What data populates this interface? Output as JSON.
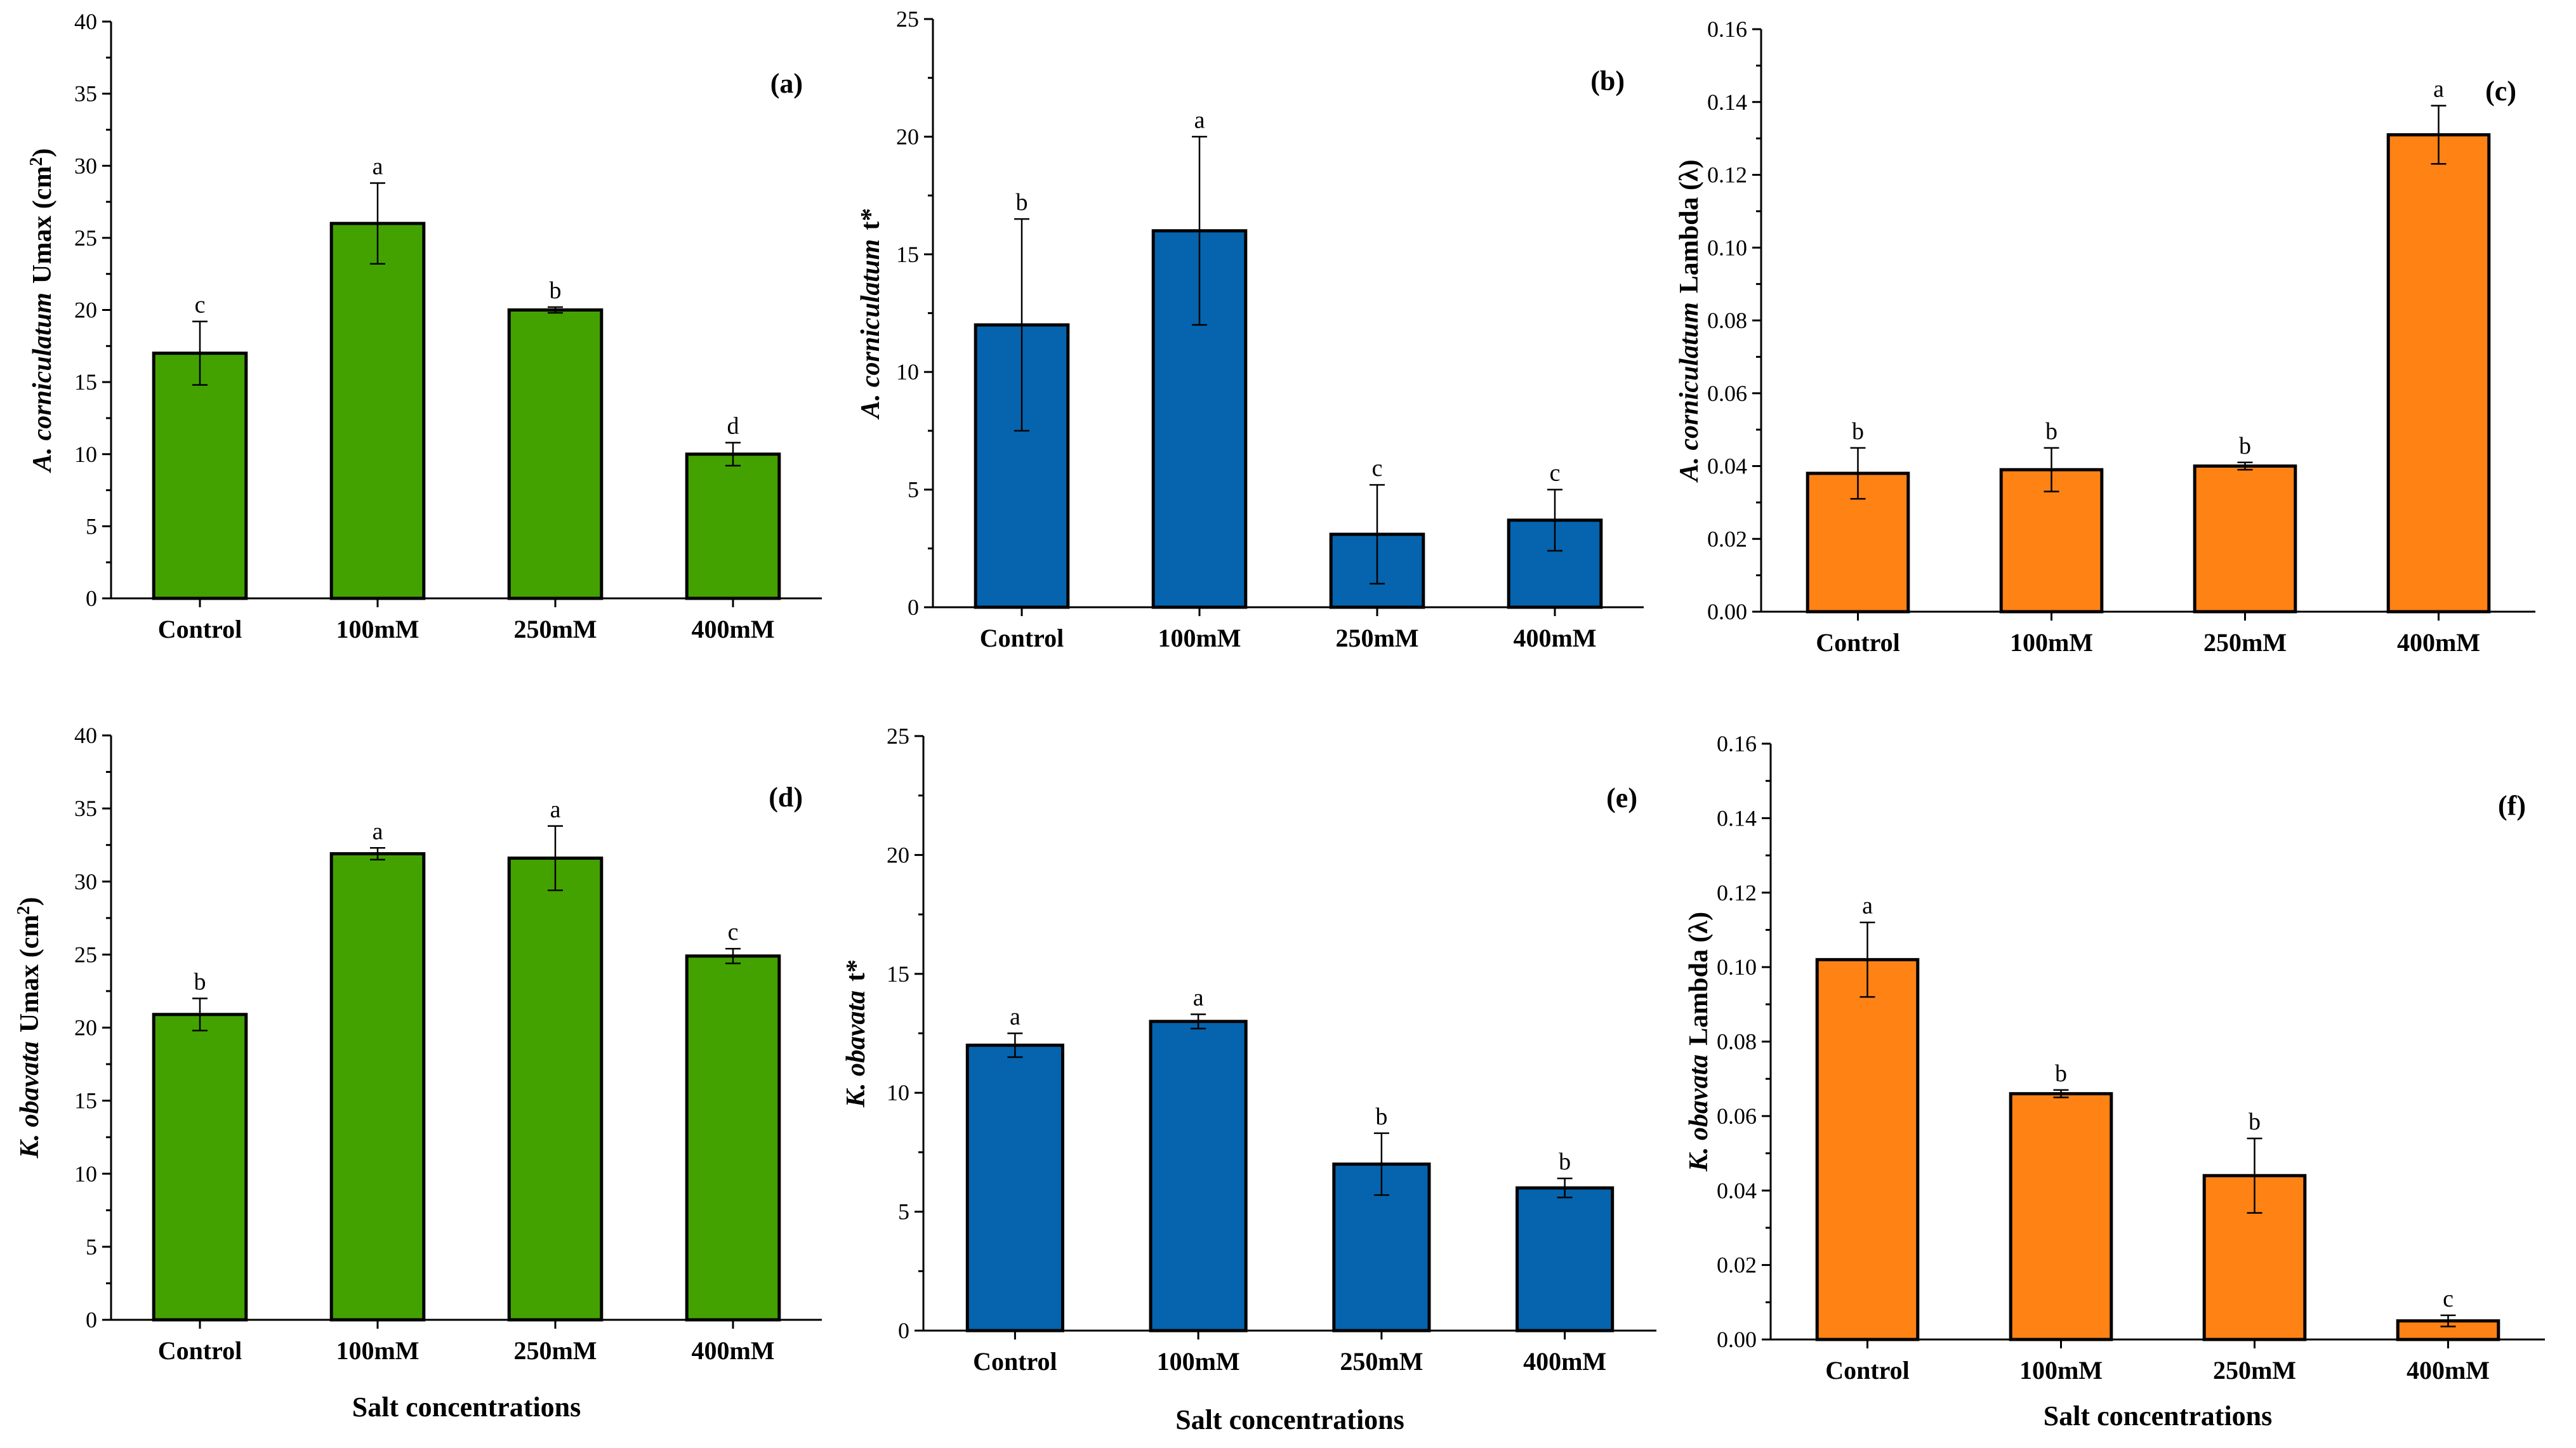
{
  "chart_data": [
    {
      "panel": "(a)",
      "type": "bar",
      "categories": [
        "Control",
        "100mM",
        "250mM",
        "400mM"
      ],
      "values": [
        17,
        26,
        20,
        10
      ],
      "errors": [
        2.2,
        2.8,
        0.2,
        0.8
      ],
      "letters": [
        "c",
        "a",
        "b",
        "d"
      ],
      "ylabel_species": "A. corniculatum",
      "ylabel_metric": "Umax (cm",
      "ylabel_sup": "2",
      "ylabel_close": ")",
      "ylim": [
        0,
        40
      ],
      "yticks": [
        "0",
        "5",
        "10",
        "15",
        "20",
        "25",
        "30",
        "35",
        "40"
      ],
      "xlabel": "",
      "color": "#43a200"
    },
    {
      "panel": "(b)",
      "type": "bar",
      "categories": [
        "Control",
        "100mM",
        "250mM",
        "400mM"
      ],
      "values": [
        12,
        16,
        3.1,
        3.7
      ],
      "errors": [
        4.5,
        4.0,
        2.1,
        1.3
      ],
      "letters": [
        "b",
        "a",
        "c",
        "c"
      ],
      "ylabel_species": "A. corniculatum",
      "ylabel_metric": "t*",
      "ylabel_sup": "",
      "ylabel_close": "",
      "ylim": [
        0,
        25
      ],
      "yticks": [
        "0",
        "5",
        "10",
        "15",
        "20",
        "25"
      ],
      "xlabel": "",
      "color": "#0564ad"
    },
    {
      "panel": "(c)",
      "type": "bar",
      "categories": [
        "Control",
        "100mM",
        "250mM",
        "400mM"
      ],
      "values": [
        0.038,
        0.039,
        0.04,
        0.131
      ],
      "errors": [
        0.007,
        0.006,
        0.001,
        0.008
      ],
      "letters": [
        "b",
        "b",
        "b",
        "a"
      ],
      "ylabel_species": "A. corniculatum",
      "ylabel_metric": "Lambda (λ)",
      "ylabel_sup": "",
      "ylabel_close": "",
      "ylim": [
        0,
        0.16
      ],
      "yticks": [
        "0.00",
        "0.02",
        "0.04",
        "0.06",
        "0.08",
        "0.10",
        "0.12",
        "0.14",
        "0.16"
      ],
      "xlabel": "",
      "color": "#ff8215"
    },
    {
      "panel": "(d)",
      "type": "bar",
      "categories": [
        "Control",
        "100mM",
        "250mM",
        "400mM"
      ],
      "values": [
        20.9,
        31.9,
        31.6,
        24.9
      ],
      "errors": [
        1.1,
        0.4,
        2.2,
        0.5
      ],
      "letters": [
        "b",
        "a",
        "a",
        "c"
      ],
      "ylabel_species": "K. obavata",
      "ylabel_metric": "Umax (cm",
      "ylabel_sup": "2",
      "ylabel_close": ")",
      "ylim": [
        0,
        40
      ],
      "yticks": [
        "0",
        "5",
        "10",
        "15",
        "20",
        "25",
        "30",
        "35",
        "40"
      ],
      "xlabel": "Salt concentrations",
      "color": "#43a200"
    },
    {
      "panel": "(e)",
      "type": "bar",
      "categories": [
        "Control",
        "100mM",
        "250mM",
        "400mM"
      ],
      "values": [
        12,
        13,
        7,
        6
      ],
      "errors": [
        0.5,
        0.3,
        1.3,
        0.4
      ],
      "letters": [
        "a",
        "a",
        "b",
        "b"
      ],
      "ylabel_species": "K. obavata",
      "ylabel_metric": "t*",
      "ylabel_sup": "",
      "ylabel_close": "",
      "ylim": [
        0,
        25
      ],
      "yticks": [
        "0",
        "5",
        "10",
        "15",
        "20",
        "25"
      ],
      "xlabel": "Salt concentrations",
      "color": "#0564ad"
    },
    {
      "panel": "(f)",
      "type": "bar",
      "categories": [
        "Control",
        "100mM",
        "250mM",
        "400mM"
      ],
      "values": [
        0.102,
        0.066,
        0.044,
        0.005
      ],
      "errors": [
        0.01,
        0.001,
        0.01,
        0.0015
      ],
      "letters": [
        "a",
        "b",
        "b",
        "c"
      ],
      "ylabel_species": "K. obavata",
      "ylabel_metric": "Lambda (λ)",
      "ylabel_sup": "",
      "ylabel_close": "",
      "ylim": [
        0,
        0.16
      ],
      "yticks": [
        "0.00",
        "0.02",
        "0.04",
        "0.06",
        "0.08",
        "0.10",
        "0.12",
        "0.14",
        "0.16"
      ],
      "xlabel": "Salt concentrations",
      "color": "#ff8215"
    }
  ]
}
